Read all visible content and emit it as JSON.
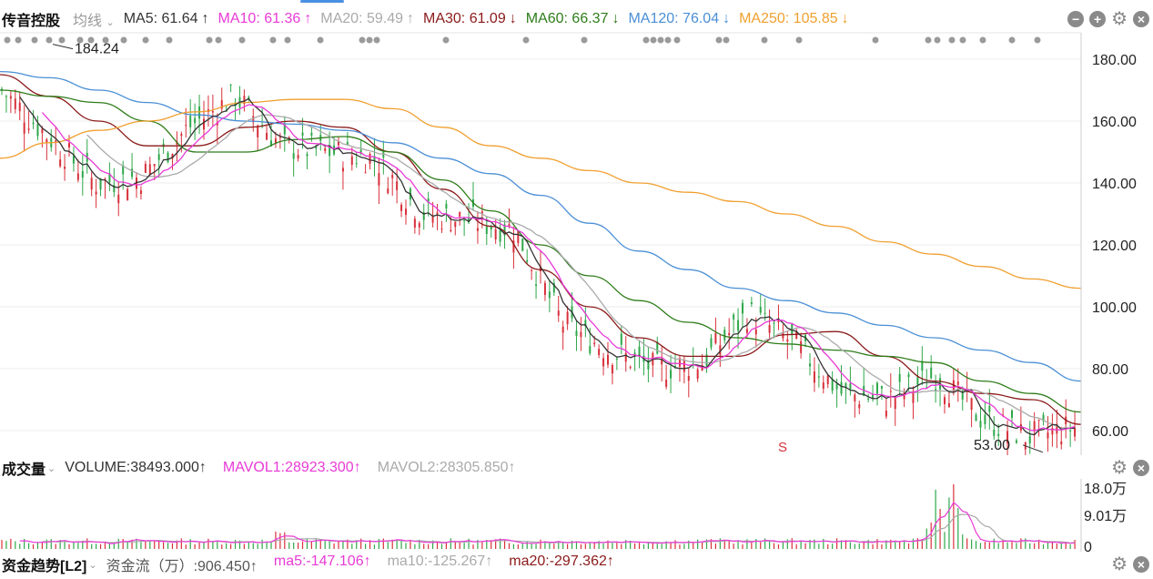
{
  "stock": "传音控股",
  "mode_label": "均线",
  "ma_legend": [
    {
      "label": "MA5: 61.64",
      "arrow": "↑",
      "color": "#333333"
    },
    {
      "label": "MA10: 61.36",
      "arrow": "↑",
      "color": "#e83ad6"
    },
    {
      "label": "MA20: 59.49",
      "arrow": "↑",
      "color": "#aaaaaa"
    },
    {
      "label": "MA30: 61.09",
      "arrow": "↓",
      "color": "#8b1a1a"
    },
    {
      "label": "MA60: 66.37",
      "arrow": "↓",
      "color": "#2e7d1a"
    },
    {
      "label": "MA120: 76.04",
      "arrow": "↓",
      "color": "#4a8fd6"
    },
    {
      "label": "MA250: 105.85",
      "arrow": "↓",
      "color": "#f0a030"
    }
  ],
  "volume": {
    "title": "成交量",
    "items": [
      {
        "label": "VOLUME:38493.000↑",
        "color": "#333333"
      },
      {
        "label": "MAVOL1:28923.300↑",
        "color": "#e83ad6"
      },
      {
        "label": "MAVOL2:28305.850↑",
        "color": "#aaaaaa"
      }
    ],
    "ticks": [
      "18.0万",
      "9.01万",
      "0"
    ]
  },
  "flow": {
    "title": "资金趋势[L2]",
    "items": [
      {
        "label": "资金流（万）:906.450↑",
        "color": "#555555"
      },
      {
        "label": "ma5:-147.106↑",
        "color": "#e83ad6"
      },
      {
        "label": "ma10:-125.267↑",
        "color": "#aaaaaa"
      },
      {
        "label": "ma20:-297.362↑",
        "color": "#8b1a1a"
      }
    ]
  },
  "chart_data": {
    "type": "line",
    "title": "传音控股",
    "ylim": [
      53,
      186
    ],
    "y_ticks": [
      "180.00",
      "160.00",
      "140.00",
      "120.00",
      "100.00",
      "80.00",
      "60.00"
    ],
    "annotations": [
      {
        "text": "184.24",
        "value": 184.24
      },
      {
        "text": "53.00",
        "value": 53.0
      },
      {
        "text": "S"
      }
    ],
    "series": [
      {
        "name": "MA30",
        "color": "#8b1a1a",
        "values": [
          175,
          168,
          160,
          152,
          152,
          158,
          160,
          158,
          150,
          138,
          126,
          112,
          100,
          90,
          84,
          84,
          91,
          92,
          84,
          76,
          72,
          70,
          62
        ]
      },
      {
        "name": "MA60",
        "color": "#2e7d1a",
        "values": [
          170,
          168,
          166,
          160,
          150,
          150,
          154,
          155,
          150,
          141,
          131,
          120,
          110,
          102,
          95,
          90,
          88,
          86,
          84,
          82,
          76,
          72,
          66
        ]
      },
      {
        "name": "MA120",
        "color": "#4a8fd6",
        "values": [
          176,
          174,
          170,
          166,
          162,
          160,
          159,
          157,
          153,
          148,
          143,
          136,
          127,
          118,
          112,
          106,
          102,
          98,
          94,
          90,
          86,
          82,
          76
        ]
      },
      {
        "name": "MA250",
        "color": "#f0a030",
        "values": [
          148,
          153,
          157,
          160,
          163,
          166,
          167,
          167,
          164,
          158,
          152,
          148,
          144,
          140,
          137,
          134,
          130,
          126,
          121,
          117,
          113,
          109,
          106
        ]
      }
    ]
  }
}
